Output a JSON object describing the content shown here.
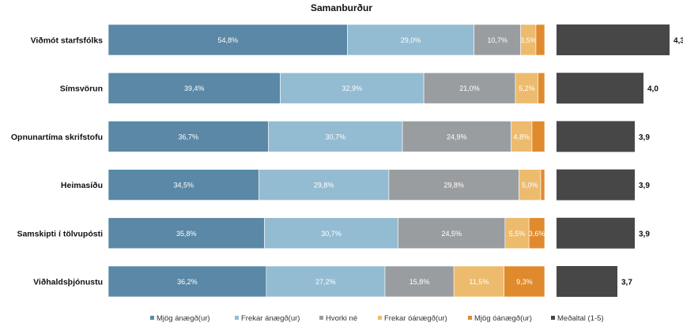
{
  "chart_data": {
    "type": "bar",
    "orientation": "horizontal-stacked-100",
    "title": "Samanburður",
    "categories": [
      "Viðmót starfsfólks",
      "Símsvörun",
      "Opnunartíma skrifstofu",
      "Heimasíðu",
      "Samskipti í tölvupósti",
      "Viðhaldsþjónustu"
    ],
    "series": [
      {
        "name": "Mjög ánægð(ur)",
        "color": "#5a88a6",
        "values": [
          54.8,
          39.4,
          36.7,
          34.5,
          35.8,
          36.2
        ],
        "labels": [
          "54,8%",
          "39,4%",
          "36,7%",
          "34,5%",
          "35,8%",
          "36,2%"
        ]
      },
      {
        "name": "Frekar ánægð(ur)",
        "color": "#93bcd2",
        "values": [
          29.0,
          32.9,
          30.7,
          29.8,
          30.7,
          27.2
        ],
        "labels": [
          "29,0%",
          "32,9%",
          "30,7%",
          "29,8%",
          "30,7%",
          "27,2%"
        ]
      },
      {
        "name": "Hvorki né",
        "color": "#9a9d9f",
        "values": [
          10.7,
          21.0,
          24.9,
          29.8,
          24.5,
          15.8
        ],
        "labels": [
          "10,7%",
          "21,0%",
          "24,9%",
          "29,8%",
          "24,5%",
          "15,8%"
        ]
      },
      {
        "name": "Frekar óánægð(ur)",
        "color": "#edbb6e",
        "values": [
          3.5,
          5.2,
          4.8,
          5.0,
          5.5,
          11.5
        ],
        "labels": [
          "3,5%",
          "5,2%",
          "4,8%",
          "5,0%",
          "5,5%",
          "11,5%"
        ]
      },
      {
        "name": "Mjög óánægð(ur)",
        "color": "#e08a2e",
        "values": [
          2.0,
          1.5,
          2.9,
          0.9,
          3.6,
          9.3
        ],
        "labels": [
          "",
          "",
          "",
          "",
          "3,6%",
          "9,3%"
        ]
      }
    ],
    "average": {
      "name": "Meðaltal (1-5)",
      "color": "#474747",
      "values": [
        4.3,
        4.0,
        3.9,
        3.9,
        3.9,
        3.7
      ],
      "labels": [
        "4,3",
        "4,0",
        "3,9",
        "3,9",
        "3,9",
        "3,7"
      ],
      "xlim": [
        3.0,
        4.3
      ]
    },
    "xlim": [
      0,
      100
    ],
    "legend_position": "bottom",
    "grid": false
  }
}
